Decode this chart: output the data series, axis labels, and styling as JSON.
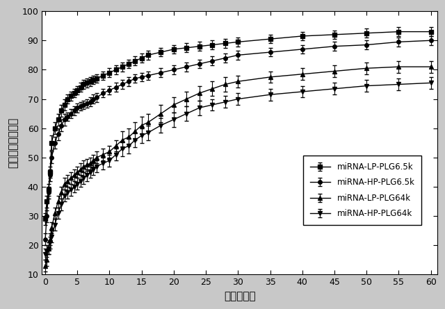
{
  "title": "",
  "xlabel": "時間（日）",
  "ylabel": "累積的放出（％）",
  "xlim": [
    -0.5,
    61
  ],
  "ylim": [
    10,
    100
  ],
  "xticks": [
    0,
    5,
    10,
    15,
    20,
    25,
    30,
    35,
    40,
    45,
    50,
    55,
    60
  ],
  "yticks": [
    10,
    20,
    30,
    40,
    50,
    60,
    70,
    80,
    90,
    100
  ],
  "series": [
    {
      "label": "miRNA-LP-PLG6.5k",
      "marker": "s",
      "x": [
        0,
        0.25,
        0.5,
        0.75,
        1,
        1.5,
        2,
        2.5,
        3,
        3.5,
        4,
        4.5,
        5,
        5.5,
        6,
        6.5,
        7,
        7.5,
        8,
        9,
        10,
        11,
        12,
        13,
        14,
        15,
        16,
        18,
        20,
        22,
        24,
        26,
        28,
        30,
        35,
        40,
        45,
        50,
        55,
        60
      ],
      "y": [
        29,
        35,
        39,
        45,
        55,
        60,
        63,
        66,
        68,
        70,
        71,
        72,
        73,
        74,
        75,
        75.5,
        76,
        76.5,
        77,
        78,
        79,
        80,
        81,
        82,
        83,
        84,
        85,
        86,
        87,
        87.5,
        88,
        88.5,
        89,
        89.5,
        90.5,
        91.5,
        92,
        92.5,
        93,
        93
      ],
      "yerr": [
        2,
        2,
        2,
        2,
        2.5,
        2,
        2,
        2,
        2,
        1.5,
        1.5,
        1.5,
        1.5,
        1.5,
        1.5,
        1.5,
        1.5,
        1.5,
        1.5,
        1.5,
        1.5,
        1.5,
        1.5,
        1.5,
        1.5,
        1.5,
        1.5,
        1.5,
        1.5,
        1.5,
        1.5,
        1.5,
        1.5,
        1.5,
        1.5,
        1.5,
        1.5,
        1.5,
        1.5,
        1.5
      ]
    },
    {
      "label": "miRNA-HP-PLG6.5k",
      "marker": "o",
      "x": [
        0,
        0.25,
        0.5,
        0.75,
        1,
        1.5,
        2,
        2.5,
        3,
        3.5,
        4,
        4.5,
        5,
        5.5,
        6,
        6.5,
        7,
        7.5,
        8,
        9,
        10,
        11,
        12,
        13,
        14,
        15,
        16,
        18,
        20,
        22,
        24,
        26,
        28,
        30,
        35,
        40,
        45,
        50,
        55,
        60
      ],
      "y": [
        22,
        30,
        38,
        44,
        50,
        55,
        58,
        61,
        63,
        64,
        65,
        66,
        67,
        67.5,
        68,
        68.5,
        69,
        70,
        70.5,
        72,
        73,
        74,
        75,
        76,
        77,
        77.5,
        78,
        79,
        80,
        81,
        82,
        83,
        84,
        85,
        86,
        87,
        88,
        88.5,
        89.5,
        90
      ],
      "yerr": [
        2,
        2,
        2,
        2,
        2,
        2,
        2,
        2,
        2,
        1.5,
        1.5,
        1.5,
        1.5,
        1.5,
        1.5,
        1.5,
        1.5,
        1.5,
        1.5,
        1.5,
        1.5,
        1.5,
        1.5,
        1.5,
        1.5,
        1.5,
        1.5,
        1.5,
        1.5,
        1.5,
        1.5,
        1.5,
        1.5,
        1.5,
        1.5,
        1.5,
        1.5,
        1.5,
        1.5,
        1.5
      ]
    },
    {
      "label": "miRNA-LP-PLG64k",
      "marker": "^",
      "x": [
        0,
        0.25,
        0.5,
        0.75,
        1,
        1.5,
        2,
        2.5,
        3,
        3.5,
        4,
        4.5,
        5,
        5.5,
        6,
        6.5,
        7,
        7.5,
        8,
        9,
        10,
        11,
        12,
        13,
        14,
        15,
        16,
        18,
        20,
        22,
        24,
        26,
        28,
        30,
        35,
        40,
        45,
        50,
        55,
        60
      ],
      "y": [
        13,
        15,
        19,
        22,
        26,
        31,
        35,
        38,
        41,
        42,
        43,
        44,
        45,
        46,
        47,
        47.5,
        48,
        49,
        50,
        51,
        52,
        54,
        56,
        57,
        59,
        61,
        62,
        65,
        68,
        70,
        72,
        73.5,
        75,
        76,
        77.5,
        78.5,
        79.5,
        80.5,
        81,
        81
      ],
      "yerr": [
        2,
        2,
        2,
        2,
        2,
        2,
        2,
        2,
        2,
        2,
        2,
        2,
        2,
        2,
        2,
        2,
        2,
        2,
        2,
        2,
        2,
        2,
        3,
        3,
        3,
        3,
        3,
        3,
        2.5,
        2.5,
        2.5,
        2.5,
        2.5,
        2,
        2,
        2,
        2,
        2,
        2,
        2
      ]
    },
    {
      "label": "miRNA-HP-PLG64k",
      "marker": "v",
      "x": [
        0,
        0.25,
        0.5,
        0.75,
        1,
        1.5,
        2,
        2.5,
        3,
        3.5,
        4,
        4.5,
        5,
        5.5,
        6,
        6.5,
        7,
        7.5,
        8,
        9,
        10,
        11,
        12,
        13,
        14,
        15,
        16,
        18,
        20,
        22,
        24,
        26,
        28,
        30,
        35,
        40,
        45,
        50,
        55,
        60
      ],
      "y": [
        17,
        18,
        19,
        21,
        23,
        27,
        31,
        34,
        37,
        38,
        39,
        40,
        41,
        42,
        43,
        44,
        45,
        46,
        47,
        48,
        49,
        51,
        53,
        54,
        56,
        57.5,
        58.5,
        61,
        63,
        65,
        67,
        68,
        69,
        70,
        71.5,
        72.5,
        73.5,
        74.5,
        75,
        75.5
      ],
      "yerr": [
        2,
        2,
        2,
        2,
        2,
        2,
        2,
        2,
        2,
        2,
        2,
        2,
        2,
        2,
        2,
        2,
        2,
        2,
        2,
        2,
        2,
        2,
        2.5,
        2.5,
        2.5,
        2.5,
        2.5,
        2.5,
        2.5,
        2.5,
        2.5,
        2,
        2,
        2,
        2,
        2,
        2,
        2,
        2,
        2
      ]
    }
  ],
  "fig_bg": "#c8c8c8",
  "ax_bg": "#ffffff",
  "markersize": 4,
  "linewidth": 1.0,
  "elinewidth": 0.8,
  "capsize": 2,
  "legend_fontsize": 8.5,
  "tick_labelsize": 9,
  "xlabel_fontsize": 11,
  "ylabel_fontsize": 11
}
